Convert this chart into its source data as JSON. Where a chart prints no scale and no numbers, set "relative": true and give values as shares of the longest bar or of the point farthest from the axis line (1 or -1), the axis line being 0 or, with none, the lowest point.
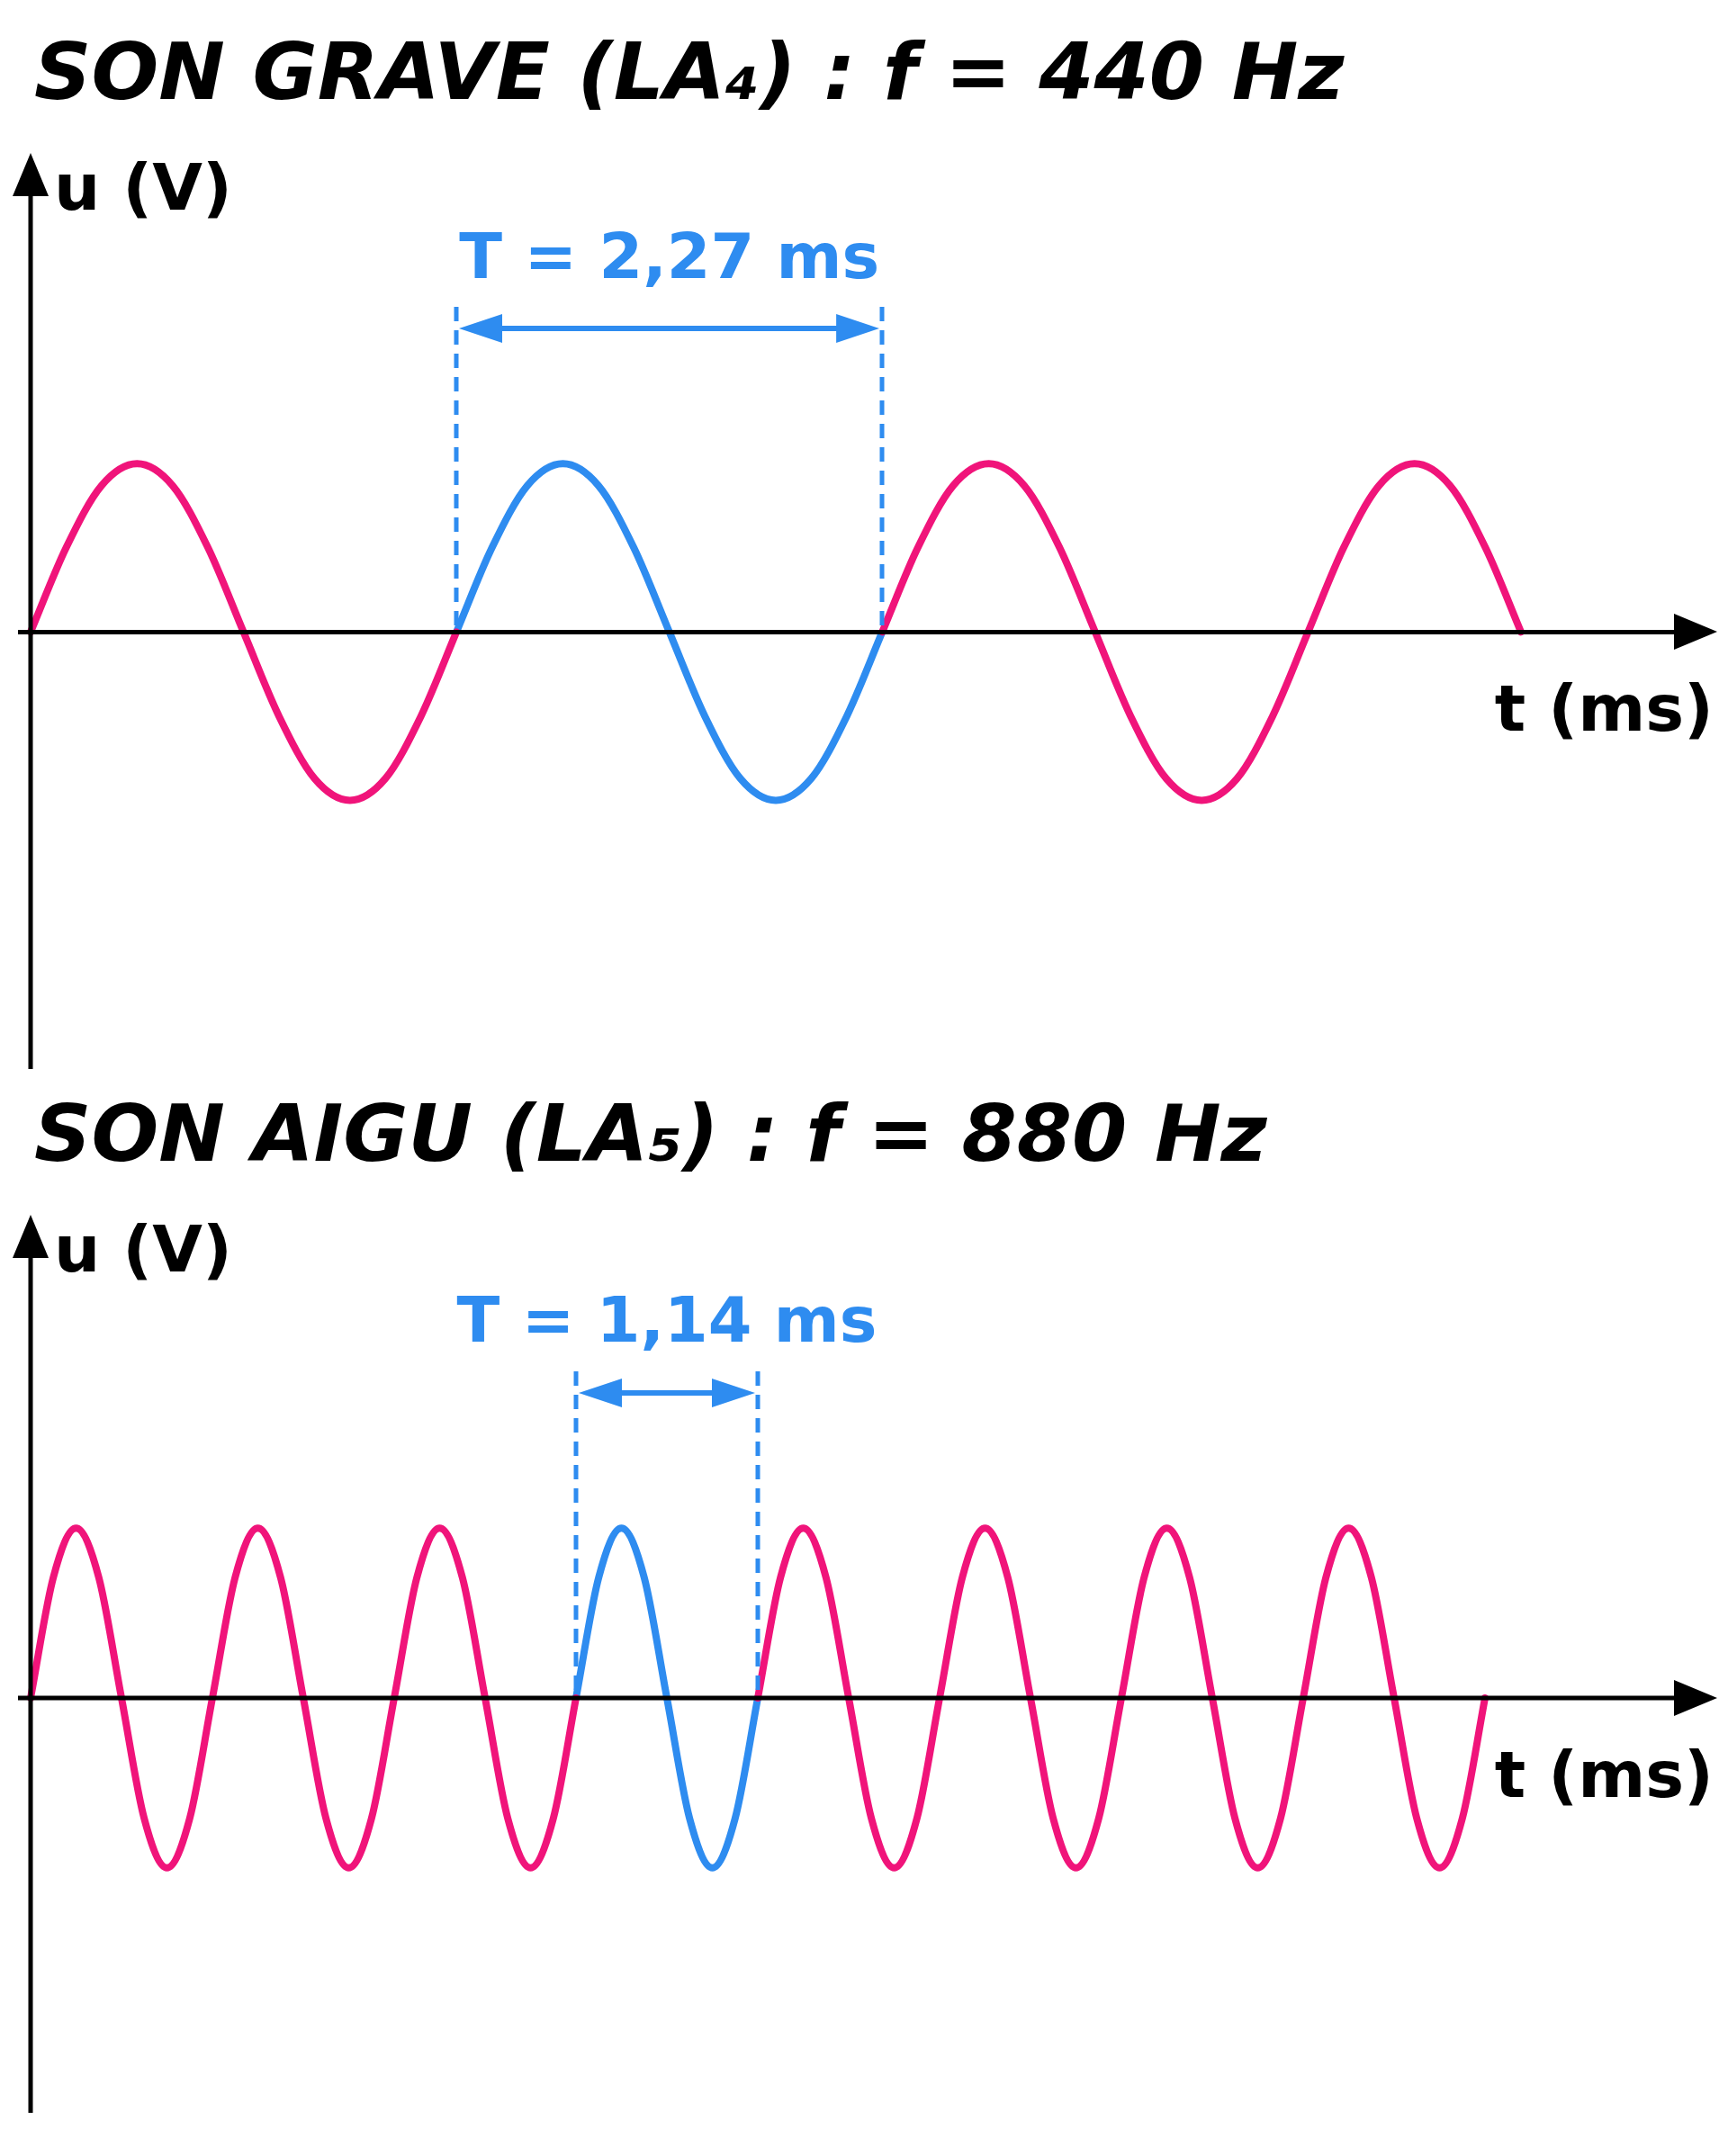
{
  "chart_data": [
    {
      "type": "line",
      "title": "SON GRAVE (LA₄) : f = 440 Hz",
      "xlabel": "t (ms)",
      "ylabel": "u (V)",
      "annotations": [
        "T = 2,27 ms"
      ],
      "relative": true,
      "legend": false,
      "grid": false,
      "tick_labels": false,
      "categories": [
        null,
        null,
        null,
        null,
        null,
        null,
        null,
        null,
        null,
        null,
        null,
        null,
        null,
        null,
        null,
        null,
        null,
        null,
        null,
        null,
        null,
        null,
        null,
        null,
        null,
        null,
        null,
        null,
        null,
        null,
        null,
        null,
        null,
        null,
        null,
        null,
        null,
        null,
        null,
        null,
        null,
        null,
        null
      ],
      "series": [
        {
          "color": "#f0147a",
          "values": [
            0,
            0.5,
            0.87,
            1,
            0.87,
            0.5,
            0,
            -0.5,
            -0.87,
            -1,
            -0.87,
            -0.5,
            0,
            null,
            null,
            null,
            null,
            null,
            null,
            null,
            null,
            null,
            null,
            null,
            0,
            0.5,
            0.87,
            1,
            0.87,
            0.5,
            0,
            -0.5,
            -0.87,
            -1,
            -0.87,
            -0.5,
            0,
            0.5,
            0.87,
            1,
            0.87,
            0.5,
            0
          ]
        },
        {
          "color": "#2e8cf0",
          "values": [
            null,
            null,
            null,
            null,
            null,
            null,
            null,
            null,
            null,
            null,
            null,
            null,
            0,
            0.5,
            0.87,
            1,
            0.87,
            0.5,
            0,
            -0.5,
            -0.87,
            -1,
            -0.87,
            -0.5,
            0,
            null,
            null,
            null,
            null,
            null,
            null,
            null,
            null,
            null,
            null,
            null,
            null,
            null,
            null,
            null,
            null,
            null,
            null
          ]
        }
      ]
    },
    {
      "type": "line",
      "title": "SON AIGU (LA₅) : f = 880 Hz",
      "xlabel": "t (ms)",
      "ylabel": "u (V)",
      "annotations": [
        "T = 1,14 ms"
      ],
      "relative": true,
      "legend": false,
      "grid": false,
      "tick_labels": false,
      "categories": [
        null,
        null,
        null,
        null,
        null,
        null,
        null,
        null,
        null,
        null,
        null,
        null,
        null,
        null,
        null,
        null,
        null,
        null,
        null,
        null,
        null,
        null,
        null,
        null,
        null,
        null,
        null,
        null,
        null,
        null,
        null,
        null,
        null,
        null,
        null,
        null,
        null,
        null,
        null,
        null,
        null,
        null,
        null,
        null,
        null,
        null,
        null,
        null,
        null,
        null,
        null,
        null,
        null,
        null,
        null,
        null,
        null,
        null,
        null,
        null,
        null,
        null,
        null,
        null,
        null
      ],
      "series": [
        {
          "color": "#f0147a",
          "values": [
            0,
            0.71,
            1,
            0.71,
            0,
            -0.71,
            -1,
            -0.71,
            0,
            0.71,
            1,
            0.71,
            0,
            -0.71,
            -1,
            -0.71,
            0,
            0.71,
            1,
            0.71,
            0,
            -0.71,
            -1,
            -0.71,
            0,
            null,
            null,
            null,
            null,
            null,
            null,
            null,
            0,
            0.71,
            1,
            0.71,
            0,
            -0.71,
            -1,
            -0.71,
            0,
            0.71,
            1,
            0.71,
            0,
            -0.71,
            -1,
            -0.71,
            0,
            0.71,
            1,
            0.71,
            0,
            -0.71,
            -1,
            -0.71,
            0,
            0.71,
            1,
            0.71,
            0,
            -0.71,
            -1,
            -0.71,
            0
          ]
        },
        {
          "color": "#2e8cf0",
          "values": [
            null,
            null,
            null,
            null,
            null,
            null,
            null,
            null,
            null,
            null,
            null,
            null,
            null,
            null,
            null,
            null,
            null,
            null,
            null,
            null,
            null,
            null,
            null,
            null,
            0,
            0.71,
            1,
            0.71,
            0,
            -0.71,
            -1,
            -0.71,
            0,
            null,
            null,
            null,
            null,
            null,
            null,
            null,
            null,
            null,
            null,
            null,
            null,
            null,
            null,
            null,
            null,
            null,
            null,
            null,
            null,
            null,
            null,
            null,
            null,
            null,
            null,
            null,
            null,
            null,
            null,
            null,
            null
          ]
        }
      ]
    }
  ]
}
